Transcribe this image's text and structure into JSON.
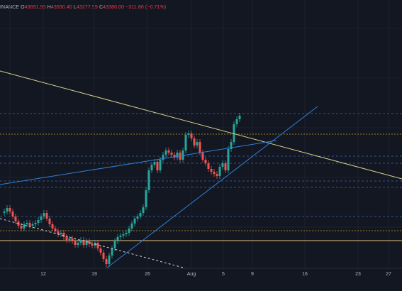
{
  "header": {
    "exchange": "INANCE",
    "ohlc": [
      {
        "key": "O",
        "value": "43691.95"
      },
      {
        "key": "H",
        "value": "43930.40"
      },
      {
        "key": "L",
        "value": "43277.99"
      },
      {
        "key": "C",
        "value": "43380.00"
      }
    ],
    "change": "−311.86 (−0.71%)"
  },
  "colors": {
    "background": "#131722",
    "grid": "#1e222d",
    "up": "#26a69a",
    "down": "#ef5350",
    "trendline_yellow": "#d6cf8c",
    "trendline_blue": "#2f7fd6",
    "trendline_white_dashed": "#d1d4dc",
    "hline_blue_dashed": "#3f63b8",
    "hline_yellow_dashed": "#c9a227",
    "hline_yellow_solid": "#e6c37a",
    "axis_text": "#b2b5be"
  },
  "chart_data": {
    "type": "candlestick",
    "symbol_exchange": "INANCE",
    "x_ticks": [
      "12",
      "19",
      "26",
      "Aug",
      "5",
      "9",
      "16",
      "23",
      "27"
    ],
    "y_ticks_visible": [],
    "last": {
      "open": 43691.95,
      "high": 43930.4,
      "low": 43277.99,
      "close": 43380.0,
      "change": -311.86,
      "change_pct": -0.71
    },
    "grid": true,
    "legend": "top-left"
  }
}
